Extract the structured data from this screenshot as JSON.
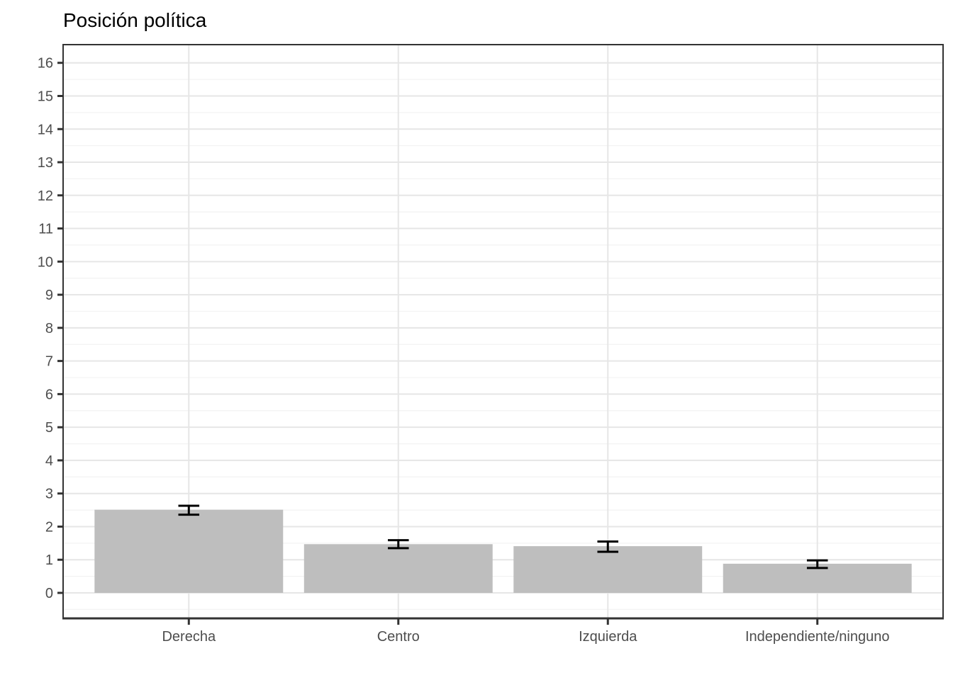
{
  "chart_data": {
    "type": "bar",
    "title": "Posición política",
    "categories": [
      "Derecha",
      "Centro",
      "Izquierda",
      "Independiente/ninguno"
    ],
    "values": [
      2.51,
      1.47,
      1.41,
      0.88
    ],
    "error_bars": {
      "low": [
        2.36,
        1.35,
        1.24,
        0.75
      ],
      "high": [
        2.63,
        1.59,
        1.55,
        0.98
      ]
    },
    "xlabel": "",
    "ylabel": "",
    "y_ticks": [
      0,
      1,
      2,
      3,
      4,
      5,
      6,
      7,
      8,
      9,
      10,
      11,
      12,
      13,
      14,
      15,
      16
    ],
    "ylim": [
      -0.77,
      16.55
    ],
    "grid": "major-and-minor",
    "legend": "none",
    "bar_width_fraction": 0.9,
    "error_cap_fraction": 0.1,
    "colors": {
      "bar_fill": "#bebebe",
      "error_bar": "#000000",
      "grid_major": "#e6e6e6",
      "grid_minor": "#f3f3f3",
      "panel_border": "#333333",
      "tick_mark": "#333333",
      "axis_text": "#4d4d4d",
      "title_text": "#000000",
      "background": "#ffffff"
    }
  }
}
